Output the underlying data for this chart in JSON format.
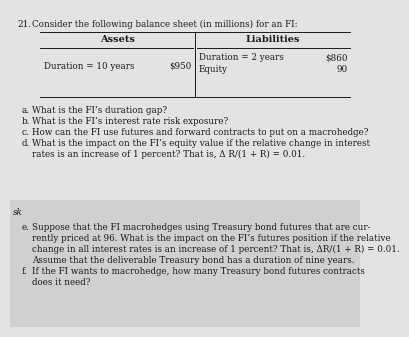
{
  "question_number": "21.",
  "question_intro": "Consider the following balance sheet (in millions) for an FI:",
  "col_headers": [
    "Assets",
    "Liabilities"
  ],
  "assets_label": "Duration = 10 years",
  "assets_value": "$950",
  "liabilities_label": "Duration = 2 years",
  "liabilities_value": "$860",
  "equity_label": "Equity",
  "equity_value": "90",
  "parts_top": [
    [
      "a.",
      "What is the FI’s duration gap?"
    ],
    [
      "b.",
      "What is the FI’s interest rate risk exposure?"
    ],
    [
      "c.",
      "How can the FI use futures and forward contracts to put on a macrohedge?"
    ],
    [
      "d.",
      "What is the impact on the FI’s equity value if the relative change in interest"
    ],
    [
      "",
      "rates is an increase of 1 percent? That is, Δ R/(1 + R) = 0.01."
    ]
  ],
  "side_label": "sk",
  "parts_bottom": [
    [
      "e.",
      "Suppose that the FI macrohedges using Treasury bond futures that are cur-"
    ],
    [
      "",
      "rently priced at 96. What is the impact on the FI’s futures position if the relative"
    ],
    [
      "",
      "change in all interest rates is an increase of 1 percent? That is, ΔR/(1 + R) = 0.01."
    ],
    [
      "",
      "Assume that the deliverable Treasury bond has a duration of nine years."
    ],
    [
      "f.",
      "If the FI wants to macrohedge, how many Treasury bond futures contracts"
    ],
    [
      "",
      "does it need?"
    ]
  ],
  "bg_top": "#e3e3e3",
  "bg_bottom": "#d0d0d0",
  "text_color": "#1a1a1a",
  "font_size": 6.3,
  "header_font_size": 7.0
}
